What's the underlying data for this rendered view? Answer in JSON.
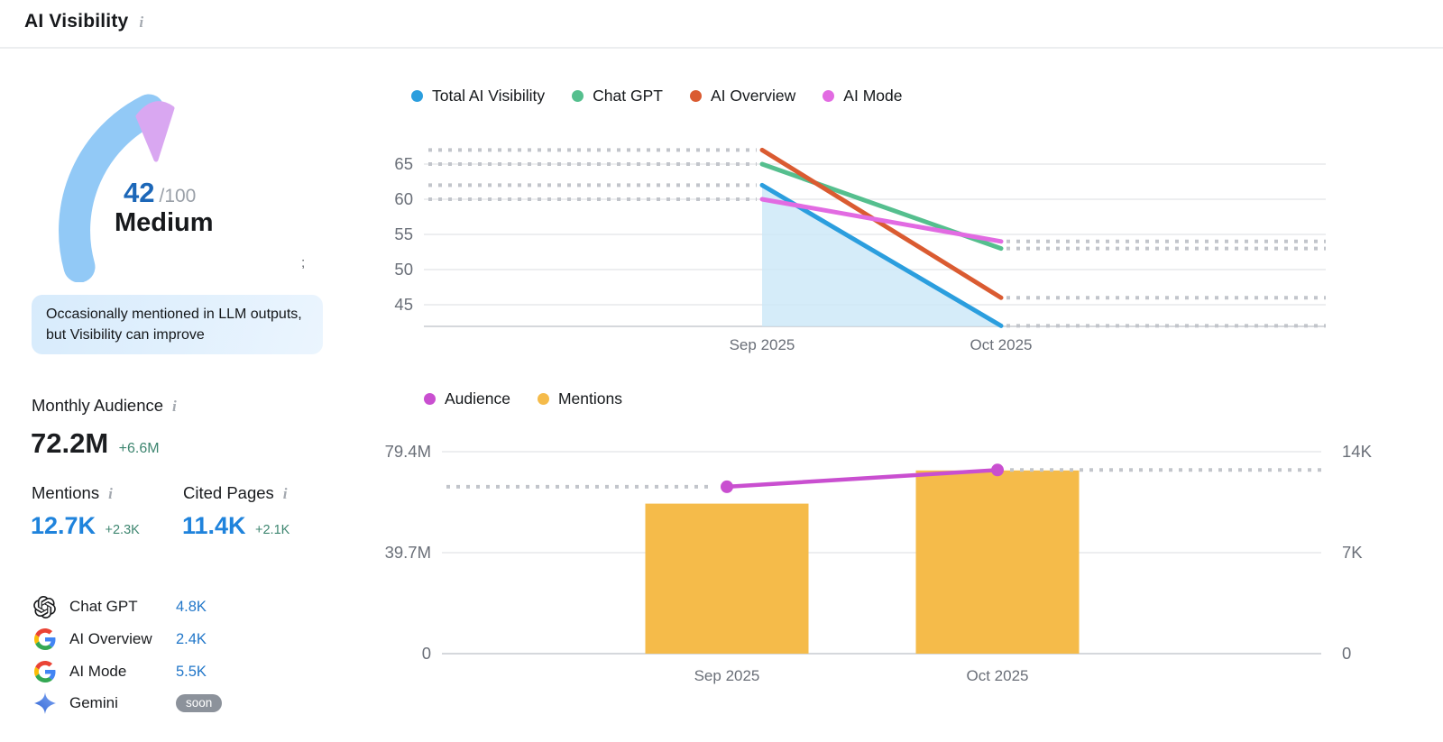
{
  "header": {
    "title": "AI Visibility",
    "info_icon": "i"
  },
  "gauge": {
    "score": "42",
    "max": "/100",
    "rating": "Medium",
    "stray_char": ";"
  },
  "note": "Occasionally mentioned in LLM outputs, but Visibility can improve",
  "metrics": {
    "monthly_audience": {
      "label": "Monthly Audience",
      "value": "72.2M",
      "delta": "+6.6M"
    },
    "mentions": {
      "label": "Mentions",
      "value": "12.7K",
      "delta": "+2.3K"
    },
    "cited_pages": {
      "label": "Cited Pages",
      "value": "11.4K",
      "delta": "+2.1K"
    }
  },
  "platforms": [
    {
      "name": "Chat GPT",
      "icon": "chatgpt-icon",
      "value": "4.8K"
    },
    {
      "name": "AI Overview",
      "icon": "google-icon",
      "value": "2.4K"
    },
    {
      "name": "AI Mode",
      "icon": "google-icon",
      "value": "5.5K"
    },
    {
      "name": "Gemini",
      "icon": "gemini-icon",
      "badge": "soon"
    }
  ],
  "colors": {
    "score_blue": "#1c67b8",
    "rating_text": "#17191c",
    "gauge_arc": "#92c9f6",
    "gauge_marker": "#d9a7f1",
    "note_bg_start": "#d7ebfc",
    "note_bg_end": "#ebf5fe",
    "metric_value_blue": "#1f83dc",
    "delta_green": "#3e8670",
    "platform_value_blue": "#2277c9",
    "badge_bg": "#8c929b",
    "dotted_gray": "#c2c5cb",
    "grid_line": "#e7e9ec",
    "axis_line": "#c7cbd1",
    "axis_text": "#6a6f78",
    "area_fill": "#cbe7f8"
  },
  "chart_data": [
    {
      "type": "line",
      "title": "AI Visibility trend by platform",
      "x": [
        "Sep 2025",
        "Oct 2025"
      ],
      "series": [
        {
          "name": "Total AI Visibility",
          "color": "#2b9ede",
          "values": [
            62,
            42
          ],
          "area": true
        },
        {
          "name": "Chat GPT",
          "color": "#55bf8e",
          "values": [
            65,
            53
          ]
        },
        {
          "name": "AI Overview",
          "color": "#da5b31",
          "values": [
            67,
            46
          ]
        },
        {
          "name": "AI Mode",
          "color": "#e26be2",
          "values": [
            60,
            54
          ]
        }
      ],
      "yticks": [
        65,
        60,
        55,
        50,
        45
      ],
      "ylim": [
        41.9,
        68.5
      ],
      "grid": true,
      "legend_position": "top",
      "dotted_extensions": true
    },
    {
      "type": "bar+line",
      "title": "Audience and Mentions by month",
      "x": [
        "Sep 2025",
        "Oct 2025"
      ],
      "series": [
        {
          "name": "Audience",
          "type": "line",
          "axis": "left",
          "unit": "M",
          "color": "#c94fd0",
          "values": [
            65.6,
            72.2
          ]
        },
        {
          "name": "Mentions",
          "type": "bar",
          "axis": "right",
          "unit": "K",
          "color": "#f5bb4a",
          "values": [
            10.4,
            12.7
          ]
        }
      ],
      "left_yticks": [
        "79.4M",
        "39.7M",
        "0"
      ],
      "right_yticks": [
        "14K",
        "7K",
        "0"
      ],
      "left_ymax": 79.4,
      "right_ymax": 14,
      "grid": true,
      "legend_position": "top"
    }
  ]
}
